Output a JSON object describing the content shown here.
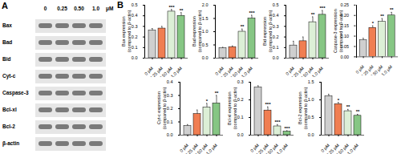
{
  "panel_A": {
    "label": "A",
    "lanes": [
      "0",
      "0.25",
      "0.50",
      "1.0"
    ],
    "unit": "μM",
    "proteins": [
      "Bax",
      "Bad",
      "Bid",
      "Cyt-c",
      "Caspase-3",
      "Bcl-xl",
      "Bcl-2",
      "β-actin"
    ]
  },
  "panel_B": {
    "label": "B"
  },
  "chart_data": [
    {
      "type": "bar",
      "y_label": "Bax expression (compared to β-actin)",
      "categories": [
        "0 μM",
        "0.25 μM",
        "0.50 μM",
        "1.0 μM"
      ],
      "values": [
        0.26,
        0.28,
        0.44,
        0.4
      ],
      "errors": [
        0.02,
        0.02,
        0.02,
        0.03
      ],
      "significance": [
        null,
        null,
        "***",
        "**"
      ],
      "colors": [
        "#cfcfcf",
        "#f07e52",
        "#dcefd6",
        "#86c684"
      ],
      "ylim": [
        0,
        0.5
      ],
      "yticks": [
        {
          "value": 0,
          "label": "0.0"
        },
        {
          "value": 0.1,
          "label": "0.1"
        },
        {
          "value": 0.2,
          "label": "0.2"
        },
        {
          "value": 0.3,
          "label": "0.3"
        },
        {
          "value": 0.4,
          "label": "0.4"
        },
        {
          "value": 0.5,
          "label": "0.5"
        }
      ]
    },
    {
      "type": "bar",
      "y_label": "Bad expression (compared to β-actin)",
      "categories": [
        "0 μM",
        "0.25 μM",
        "0.50 μM",
        "1.0 μM"
      ],
      "values": [
        0.38,
        0.42,
        1.0,
        1.5
      ],
      "errors": [
        0.03,
        0.04,
        0.1,
        0.12
      ],
      "significance": [
        null,
        null,
        "**",
        "***"
      ],
      "colors": [
        "#cfcfcf",
        "#f07e52",
        "#dcefd6",
        "#86c684"
      ],
      "ylim": [
        0,
        2.0
      ],
      "yticks": [
        {
          "value": 0,
          "label": "0.0"
        },
        {
          "value": 0.5,
          "label": "0.5"
        },
        {
          "value": 1.0,
          "label": "1.0"
        },
        {
          "value": 1.5,
          "label": "1.5"
        },
        {
          "value": 2.0,
          "label": "2.0"
        }
      ]
    },
    {
      "type": "bar",
      "y_label": "Bid expression (compared to β-actin)",
      "categories": [
        "0 μM",
        "0.25 μM",
        "0.50 μM",
        "1.0 μM"
      ],
      "values": [
        0.12,
        0.16,
        0.34,
        0.41
      ],
      "errors": [
        0.04,
        0.04,
        0.05,
        0.04
      ],
      "significance": [
        null,
        null,
        "**",
        "***"
      ],
      "colors": [
        "#cfcfcf",
        "#f07e52",
        "#dcefd6",
        "#86c684"
      ],
      "ylim": [
        0,
        0.5
      ],
      "yticks": [
        {
          "value": 0,
          "label": "0.0"
        },
        {
          "value": 0.1,
          "label": "0.1"
        },
        {
          "value": 0.2,
          "label": "0.2"
        },
        {
          "value": 0.3,
          "label": "0.3"
        },
        {
          "value": 0.4,
          "label": "0.4"
        },
        {
          "value": 0.5,
          "label": "0.5"
        }
      ]
    },
    {
      "type": "bar",
      "y_label": "Caspase-3 expression (compared to β-actin)",
      "categories": [
        "0 μM",
        "0.25 μM",
        "0.50 μM",
        "1.0 μM"
      ],
      "values": [
        0.08,
        0.14,
        0.17,
        0.2
      ],
      "errors": [
        0.01,
        0.01,
        0.015,
        0.015
      ],
      "significance": [
        null,
        "*",
        "**",
        "**"
      ],
      "colors": [
        "#cfcfcf",
        "#f07e52",
        "#dcefd6",
        "#86c684"
      ],
      "ylim": [
        0,
        0.25
      ],
      "yticks": [
        {
          "value": 0,
          "label": "0.00"
        },
        {
          "value": 0.05,
          "label": "0.05"
        },
        {
          "value": 0.1,
          "label": "0.10"
        },
        {
          "value": 0.15,
          "label": "0.15"
        },
        {
          "value": 0.2,
          "label": "0.20"
        },
        {
          "value": 0.25,
          "label": "0.25"
        }
      ]
    },
    {
      "type": "bar",
      "y_label": "Cyt-c expression (compared to β-actin)",
      "categories": [
        "0 μM",
        "0.25 μM",
        "0.50 μM",
        "1.0 μM"
      ],
      "values": [
        0.07,
        0.16,
        0.21,
        0.24
      ],
      "errors": [
        0.01,
        0.03,
        0.03,
        0.06
      ],
      "significance": [
        null,
        null,
        "*",
        "**"
      ],
      "colors": [
        "#cfcfcf",
        "#f07e52",
        "#dcefd6",
        "#86c684"
      ],
      "ylim": [
        0,
        0.4
      ],
      "yticks": [
        {
          "value": 0,
          "label": "0.0"
        },
        {
          "value": 0.1,
          "label": "0.1"
        },
        {
          "value": 0.2,
          "label": "0.2"
        },
        {
          "value": 0.3,
          "label": "0.3"
        },
        {
          "value": 0.4,
          "label": "0.4"
        }
      ]
    },
    {
      "type": "bar",
      "y_label": "Bcl-xl expression (compared to β-actin)",
      "categories": [
        "0 μM",
        "0.25 μM",
        "0.50 μM",
        "1.0 μM"
      ],
      "values": [
        0.27,
        0.14,
        0.05,
        0.02
      ],
      "errors": [
        0.01,
        0.02,
        0.01,
        0.005
      ],
      "significance": [
        null,
        "***",
        "***",
        "***"
      ],
      "colors": [
        "#cfcfcf",
        "#f07e52",
        "#dcefd6",
        "#86c684"
      ],
      "ylim": [
        0,
        0.3
      ],
      "yticks": [
        {
          "value": 0,
          "label": "0.0"
        },
        {
          "value": 0.1,
          "label": "0.1"
        },
        {
          "value": 0.2,
          "label": "0.2"
        },
        {
          "value": 0.3,
          "label": "0.3"
        }
      ]
    },
    {
      "type": "bar",
      "y_label": "Bcl-2 expression (compared to β-actin)",
      "categories": [
        "0 μM",
        "0.25 μM",
        "0.50 μM",
        "1.0 μM"
      ],
      "values": [
        1.1,
        0.88,
        0.68,
        0.55
      ],
      "errors": [
        0.06,
        0.05,
        0.05,
        0.04
      ],
      "significance": [
        null,
        "*",
        "**",
        "**"
      ],
      "colors": [
        "#cfcfcf",
        "#f07e52",
        "#dcefd6",
        "#86c684"
      ],
      "ylim": [
        0,
        1.5
      ],
      "yticks": [
        {
          "value": 0,
          "label": "0.0"
        },
        {
          "value": 0.5,
          "label": "0.5"
        },
        {
          "value": 1.0,
          "label": "1.0"
        },
        {
          "value": 1.5,
          "label": "1.5"
        }
      ]
    }
  ]
}
